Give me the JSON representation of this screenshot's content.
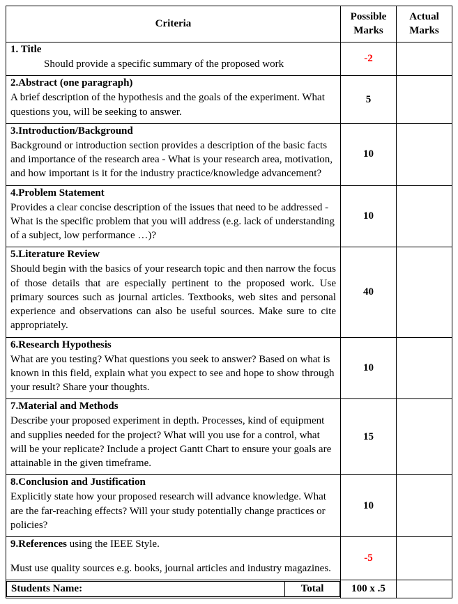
{
  "header": {
    "criteria": "Criteria",
    "possible": "Possible Marks",
    "actual": "Actual Marks"
  },
  "rows": [
    {
      "heading": "1. Title",
      "desc": "Should provide a specific summary of the proposed work",
      "marks": "-2",
      "neg": true,
      "indent": true,
      "justify": false
    },
    {
      "heading": "2.Abstract (one paragraph)",
      "desc": "A brief description of the hypothesis and the goals of the experiment. What questions you, will be seeking to answer.",
      "marks": "5",
      "neg": false,
      "indent": false,
      "justify": false
    },
    {
      "heading": "3.Introduction/Background",
      "desc": "Background or introduction section provides a description of the basic facts and importance of the research area - What is your research area, motivation, and how important is it for the industry practice/knowledge advancement?",
      "marks": "10",
      "neg": false,
      "indent": false,
      "justify": false
    },
    {
      "heading": "4.Problem Statement",
      "desc": "Provides a clear concise description of the issues that need to be addressed - What is the specific problem that you will address (e.g. lack of understanding of a subject, low performance …)?",
      "marks": "10",
      "neg": false,
      "indent": false,
      "justify": false
    },
    {
      "heading": "5.Literature Review",
      "desc": "Should begin with the basics of your research topic and then narrow the focus of those details that are especially pertinent to the proposed work. Use primary sources such as journal articles. Textbooks, web sites and personal experience and observations can also be useful sources. Make sure to cite appropriately.",
      "marks": "40",
      "neg": false,
      "indent": false,
      "justify": true
    },
    {
      "heading": "6.Research Hypothesis",
      "desc": "What are you testing? What questions you seek to answer? Based on what is known in this field, explain what you expect to see and hope to show through your result? Share your thoughts.",
      "marks": "10",
      "neg": false,
      "indent": false,
      "justify": false
    },
    {
      "heading": "7.Material and Methods",
      "desc": "Describe your proposed experiment in depth. Processes, kind of equipment and supplies needed for the project? What will you use for a control, what will be your replicate? Include a project Gantt Chart to ensure your goals are attainable in the given timeframe.",
      "marks": "15",
      "neg": false,
      "indent": false,
      "justify": false
    },
    {
      "heading": "8.Conclusion and Justification",
      "desc": "Explicitly state how your proposed research will advance knowledge. What are the far-reaching effects? Will your study potentially change practices or policies?",
      "marks": "10",
      "neg": false,
      "indent": false,
      "justify": false
    },
    {
      "heading_html": "<b>9.References</b> using the IEEE Style.",
      "desc": "Must use quality sources e.g. books, journal articles and industry magazines.",
      "marks": "-5",
      "neg": true,
      "indent": false,
      "justify": false,
      "gap": true
    }
  ],
  "footer": {
    "name_label": "Students Name:",
    "total_label": "Total",
    "total_marks": "100 x .5"
  }
}
